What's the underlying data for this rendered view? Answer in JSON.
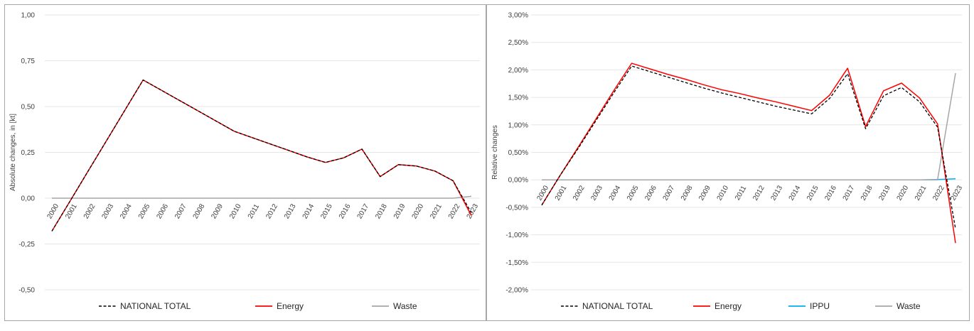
{
  "chart_data": [
    {
      "type": "line",
      "ylabel": "Absolute changes, in [kt]",
      "ylim": [
        -0.5,
        1.0
      ],
      "y_ticks": [
        "1,00",
        "0,75",
        "0,50",
        "0,25",
        "0,00",
        "-0,25",
        "-0,50"
      ],
      "y_tick_values": [
        1.0,
        0.75,
        0.5,
        0.25,
        0.0,
        -0.25,
        -0.5
      ],
      "categories": [
        "2000",
        "2001",
        "2002",
        "2003",
        "2004",
        "2005",
        "2006",
        "2007",
        "2008",
        "2009",
        "2010",
        "2011",
        "2012",
        "2013",
        "2014",
        "2015",
        "2016",
        "2017",
        "2018",
        "2019",
        "2020",
        "2021",
        "2022",
        "2023"
      ],
      "x_labels": [
        "2000",
        "2001",
        "2002",
        "2003",
        "2004",
        "2005",
        "2006",
        "2007",
        "2008",
        "2009",
        "2010",
        "2011",
        "2012",
        "2013",
        "2014",
        "2015",
        "2016",
        "2017",
        "2018",
        "2019",
        "2020",
        "2021",
        "2022",
        "2023"
      ],
      "grid": true,
      "legend_position": "bottom",
      "series": [
        {
          "name": "NATIONAL TOTAL",
          "color": "#000000",
          "dash": true,
          "values": [
            -0.18,
            -0.015,
            0.15,
            0.315,
            0.48,
            0.645,
            0.589,
            0.533,
            0.477,
            0.421,
            0.365,
            0.33,
            0.295,
            0.26,
            0.225,
            0.195,
            0.22,
            0.268,
            0.118,
            0.183,
            0.175,
            0.148,
            0.095,
            -0.08
          ]
        },
        {
          "name": "Energy",
          "color": "#ff0000",
          "dash": false,
          "values": [
            -0.18,
            -0.015,
            0.15,
            0.315,
            0.48,
            0.645,
            0.589,
            0.533,
            0.477,
            0.421,
            0.365,
            0.33,
            0.295,
            0.26,
            0.225,
            0.195,
            0.22,
            0.268,
            0.118,
            0.183,
            0.175,
            0.148,
            0.095,
            -0.095
          ]
        },
        {
          "name": "Waste",
          "color": "#a6a6a6",
          "dash": false,
          "values": [
            0,
            0,
            0,
            0,
            0,
            0,
            0,
            0,
            0,
            0,
            0,
            0,
            0,
            0,
            0,
            0,
            0,
            0,
            0,
            0,
            0,
            0,
            0,
            0.01
          ]
        }
      ]
    },
    {
      "type": "line",
      "ylabel": "Relative changes",
      "ylim": [
        -2.0,
        3.0
      ],
      "y_ticks": [
        "3,00%",
        "2,50%",
        "2,00%",
        "1,50%",
        "1,00%",
        "0,50%",
        "0,00%",
        "-0,50%",
        "-1,00%",
        "-1,50%",
        "-2,00%"
      ],
      "y_tick_values": [
        3.0,
        2.5,
        2.0,
        1.5,
        1.0,
        0.5,
        0.0,
        -0.5,
        -1.0,
        -1.5,
        -2.0
      ],
      "categories": [
        "2000",
        "2001",
        "2002",
        "2003",
        "2004",
        "2005",
        "2006",
        "2007",
        "2008",
        "2009",
        "2010",
        "2011",
        "2012",
        "2013",
        "2014",
        "2015",
        "2016",
        "2017",
        "2018",
        "2019",
        "2020",
        "2021",
        "2022",
        "2023"
      ],
      "x_labels": [
        "2000",
        "2001",
        "2002",
        "2003",
        "2004",
        "2005",
        "2006",
        "2007",
        "2008",
        "2009",
        "2010",
        "2011",
        "2012",
        "2013",
        "2014",
        "2015",
        "2016",
        "2017",
        "2018",
        "2019",
        "2020",
        "2021",
        "2022",
        "2023"
      ],
      "grid": true,
      "legend_position": "bottom",
      "series": [
        {
          "name": "NATIONAL TOTAL",
          "color": "#000000",
          "dash": true,
          "values": [
            -0.46,
            0.07,
            0.56,
            1.07,
            1.58,
            2.07,
            1.97,
            1.87,
            1.77,
            1.67,
            1.58,
            1.5,
            1.42,
            1.34,
            1.27,
            1.2,
            1.48,
            1.93,
            0.93,
            1.53,
            1.68,
            1.42,
            0.96,
            -0.89
          ]
        },
        {
          "name": "Energy",
          "color": "#ff0000",
          "dash": false,
          "values": [
            -0.46,
            0.07,
            0.58,
            1.1,
            1.62,
            2.12,
            2.02,
            1.92,
            1.83,
            1.73,
            1.64,
            1.57,
            1.49,
            1.42,
            1.34,
            1.26,
            1.54,
            2.03,
            0.97,
            1.62,
            1.76,
            1.49,
            1.02,
            -1.15
          ]
        },
        {
          "name": "IPPU",
          "color": "#00b0f0",
          "dash": false,
          "values": [
            0,
            0,
            0,
            0,
            0,
            0,
            0,
            0,
            0,
            0,
            0,
            0,
            0,
            0,
            0,
            0,
            0,
            0,
            0,
            0,
            0,
            0,
            0.005,
            0.02
          ]
        },
        {
          "name": "Waste",
          "color": "#a6a6a6",
          "dash": false,
          "values": [
            0,
            0,
            0,
            0,
            0,
            0,
            0,
            0,
            0,
            0,
            0,
            0,
            0,
            0,
            0,
            0,
            0,
            0,
            0,
            0,
            0,
            0,
            0,
            1.94
          ]
        }
      ]
    }
  ]
}
